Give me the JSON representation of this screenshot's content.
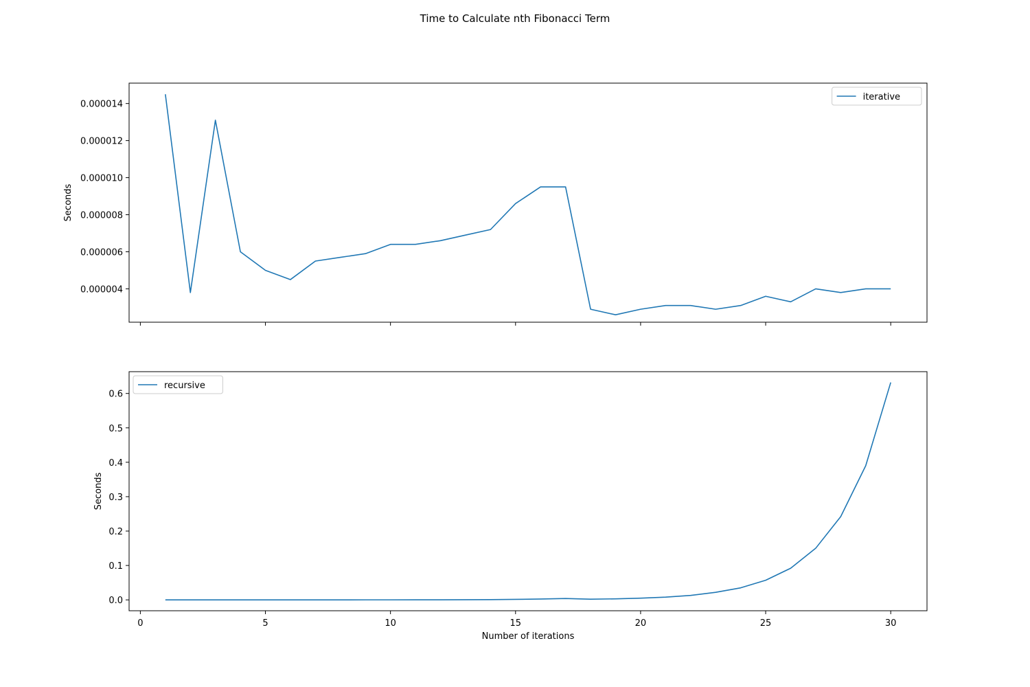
{
  "figure": {
    "title": "Time to Calculate nth Fibonacci Term"
  },
  "colors": {
    "line": "#1f77b4",
    "axis": "#000000",
    "background": "#ffffff",
    "legend_border": "#cccccc"
  },
  "chart_data": [
    {
      "type": "line",
      "ylabel": "Seconds",
      "xlabel": "",
      "xlim": [
        -0.45,
        31.45
      ],
      "ylim": [
        2.2e-06,
        1.51e-05
      ],
      "xticks": [
        0,
        5,
        10,
        15,
        20,
        25,
        30
      ],
      "show_xticklabels": false,
      "yticks": [
        4e-06,
        6e-06,
        8e-06,
        1e-05,
        1.2e-05,
        1.4e-05
      ],
      "yticklabels": [
        "0.000004",
        "0.000006",
        "0.000008",
        "0.000010",
        "0.000012",
        "0.000014"
      ],
      "grid": false,
      "legend": "top-right",
      "series": [
        {
          "name": "iterative",
          "x": [
            1,
            2,
            3,
            4,
            5,
            6,
            7,
            8,
            9,
            10,
            11,
            12,
            13,
            14,
            15,
            16,
            17,
            18,
            19,
            20,
            21,
            22,
            23,
            24,
            25,
            26,
            27,
            28,
            29,
            30
          ],
          "values": [
            1.45e-05,
            3.8e-06,
            1.31e-05,
            6e-06,
            5e-06,
            4.5e-06,
            5.5e-06,
            5.7e-06,
            5.9e-06,
            6.4e-06,
            6.4e-06,
            6.6e-06,
            6.9e-06,
            7.2e-06,
            8.6e-06,
            9.5e-06,
            9.5e-06,
            2.9e-06,
            2.6e-06,
            2.9e-06,
            3.1e-06,
            3.1e-06,
            2.9e-06,
            3.1e-06,
            3.6e-06,
            3.3e-06,
            4e-06,
            3.8e-06,
            4e-06,
            4e-06
          ]
        }
      ]
    },
    {
      "type": "line",
      "ylabel": "Seconds",
      "xlabel": "Number of iterations",
      "xlim": [
        -0.45,
        31.45
      ],
      "ylim": [
        -0.0316,
        0.6633
      ],
      "xticks": [
        0,
        5,
        10,
        15,
        20,
        25,
        30
      ],
      "xticklabels": [
        "0",
        "5",
        "10",
        "15",
        "20",
        "25",
        "30"
      ],
      "show_xticklabels": true,
      "yticks": [
        0,
        0.1,
        0.2,
        0.3,
        0.4,
        0.5,
        0.6
      ],
      "yticklabels": [
        "0.0",
        "0.1",
        "0.2",
        "0.3",
        "0.4",
        "0.5",
        "0.6"
      ],
      "grid": false,
      "legend": "top-left",
      "series": [
        {
          "name": "recursive",
          "x": [
            1,
            2,
            3,
            4,
            5,
            6,
            7,
            8,
            9,
            10,
            11,
            12,
            13,
            14,
            15,
            16,
            17,
            18,
            19,
            20,
            21,
            22,
            23,
            24,
            25,
            26,
            27,
            28,
            29,
            30
          ],
          "values": [
            0.0,
            0.0,
            0.0,
            0.0,
            0.0,
            0.0,
            0.0,
            0.0,
            0.0001,
            0.0001,
            0.0002,
            0.0003,
            0.0005,
            0.0008,
            0.0014,
            0.0025,
            0.004,
            0.002,
            0.003,
            0.005,
            0.008,
            0.013,
            0.022,
            0.035,
            0.057,
            0.092,
            0.15,
            0.242,
            0.39,
            0.632
          ]
        }
      ]
    }
  ]
}
